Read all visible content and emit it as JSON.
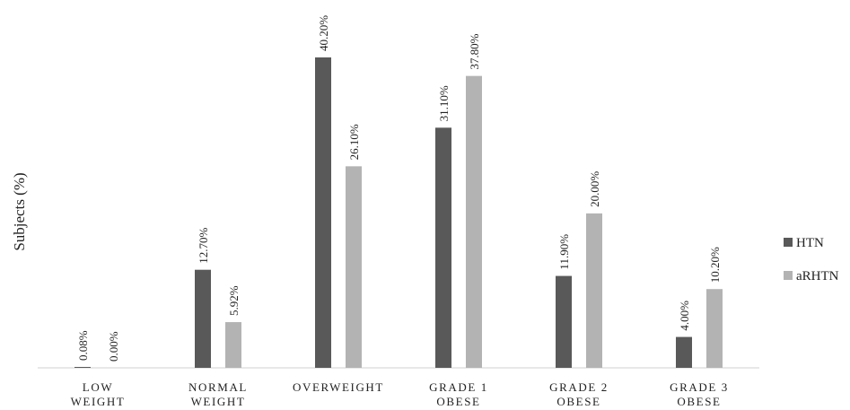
{
  "chart_data": {
    "type": "bar",
    "ylabel": "Subjects (%)",
    "xlabel": "",
    "categories": [
      [
        "LOW",
        "WEIGHT"
      ],
      [
        "NORMAL",
        "WEIGHT"
      ],
      [
        "OVERWEIGHT"
      ],
      [
        "GRADE 1",
        "OBESE"
      ],
      [
        "GRADE 2",
        "OBESE"
      ],
      [
        "GRADE 3",
        "OBESE"
      ]
    ],
    "series": [
      {
        "name": "HTN",
        "color": "#595959",
        "values": [
          0.08,
          12.7,
          40.2,
          31.1,
          11.9,
          4.0
        ],
        "labels": [
          "0.08%",
          "12.70%",
          "40.20%",
          "31.10%",
          "11.90%",
          "4.00%"
        ]
      },
      {
        "name": "aRHTN",
        "color": "#b3b3b3",
        "values": [
          0.0,
          5.92,
          26.1,
          37.8,
          20.0,
          10.2
        ],
        "labels": [
          "0.00%",
          "5.92%",
          "26.10%",
          "37.80%",
          "20.00%",
          "10.20%"
        ]
      }
    ],
    "ylim": [
      0,
      40.2
    ],
    "grid": false,
    "legend": "right"
  }
}
